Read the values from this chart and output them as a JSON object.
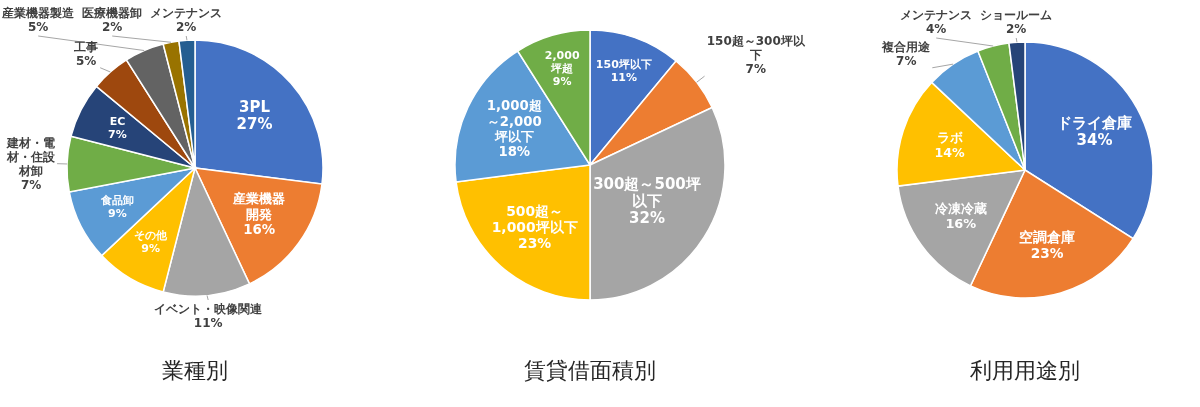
{
  "chart_data": [
    {
      "type": "pie",
      "title": "業種別",
      "categories": [
        "3PL",
        "産業機器開発",
        "イベント・映像関連",
        "その他",
        "食品卸",
        "建材・電材・住設材卸",
        "EC",
        "工事",
        "産業機器製造",
        "医療機器卸",
        "メンテナンス"
      ],
      "values": [
        27,
        16,
        11,
        9,
        9,
        7,
        7,
        5,
        5,
        2,
        2
      ],
      "value_labels": [
        "27%",
        "16%",
        "11%",
        "9%",
        "9%",
        "7%",
        "7%",
        "5%",
        "5%",
        "2%",
        "2%"
      ],
      "colors": [
        "#4472c4",
        "#ed7d31",
        "#a5a5a5",
        "#ffc000",
        "#5b9bd5",
        "#70ad47",
        "#264478",
        "#9e480e",
        "#636363",
        "#997300",
        "#255e91"
      ]
    },
    {
      "type": "pie",
      "title": "賃貸借面積別",
      "categories": [
        "150坪以下",
        "150超～300坪以下",
        "300超～500坪以下",
        "500超～1,000坪以下",
        "1,000超～2,000坪以下",
        "2,000坪超"
      ],
      "values": [
        11,
        7,
        32,
        23,
        18,
        9
      ],
      "value_labels": [
        "11%",
        "7%",
        "32%",
        "23%",
        "18%",
        "9%"
      ],
      "colors": [
        "#4472c4",
        "#ed7d31",
        "#a5a5a5",
        "#ffc000",
        "#5b9bd5",
        "#70ad47"
      ]
    },
    {
      "type": "pie",
      "title": "利用用途別",
      "categories": [
        "ドライ倉庫",
        "空調倉庫",
        "冷凍冷蔵",
        "ラボ",
        "複合用途",
        "メンテナンス",
        "ショールーム"
      ],
      "values": [
        34,
        23,
        16,
        14,
        7,
        4,
        2
      ],
      "value_labels": [
        "34%",
        "23%",
        "16%",
        "14%",
        "7%",
        "4%",
        "2%"
      ],
      "colors": [
        "#4472c4",
        "#ed7d31",
        "#a5a5a5",
        "#ffc000",
        "#5b9bd5",
        "#70ad47",
        "#264478"
      ]
    }
  ]
}
